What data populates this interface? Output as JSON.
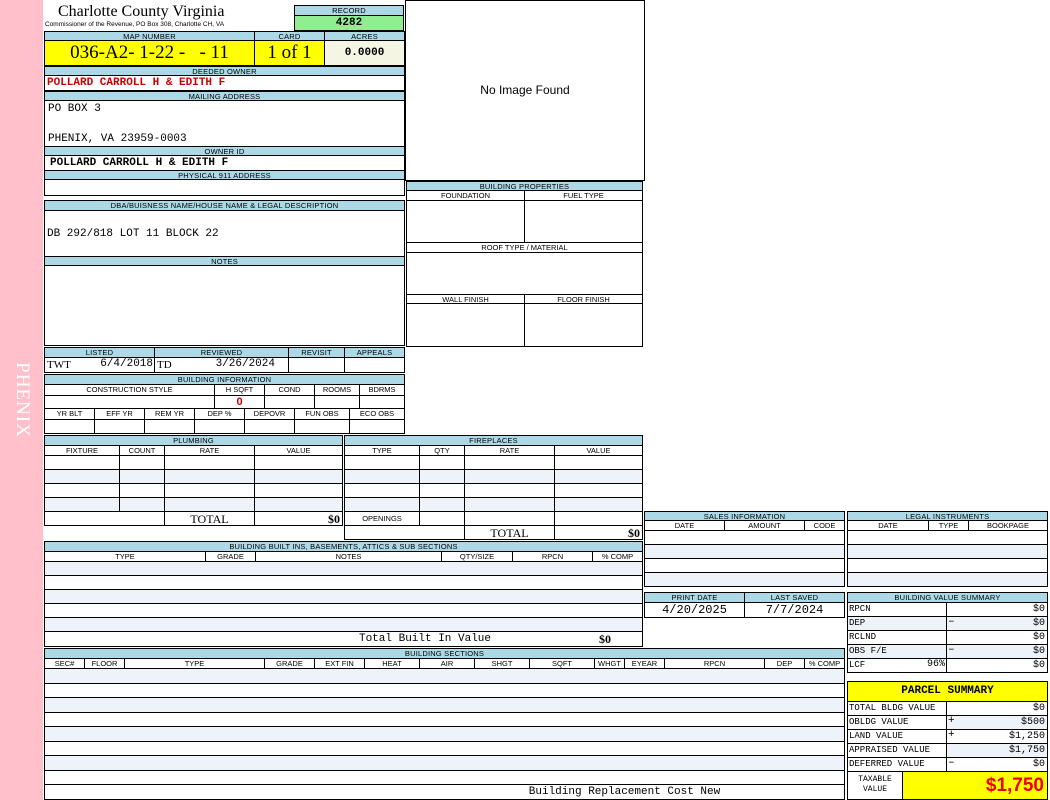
{
  "side_label": "PHENIX",
  "header": {
    "title": "Charlotte County Virginia",
    "subtitle": "Commissioner of the Revenue, PO Box 308, Charlotte CH, VA",
    "record_label": "RECORD",
    "record": "4282"
  },
  "parcel": {
    "map_number_label": "MAP NUMBER",
    "map_number": "036-A2- 1-22 -   - 11",
    "card_label": "CARD",
    "card": "1 of 1",
    "acres_label": "ACRES",
    "acres": "0.0000"
  },
  "owner": {
    "deeded_label": "DEEDED OWNER",
    "deeded": "POLLARD CARROLL H & EDITH F",
    "mailing_label": "MAILING ADDRESS",
    "mailing_line1": "PO BOX 3",
    "mailing_line2": "PHENIX, VA 23959-0003",
    "owner_id_label": "OWNER ID",
    "owner_id": "POLLARD CARROLL H & EDITH F",
    "physical_label": "PHYSICAL 911 ADDRESS"
  },
  "image": {
    "no_image": "No Image Found"
  },
  "dba": {
    "label": "DBA/BUISNESS NAME/HOUSE NAME & LEGAL DESCRIPTION",
    "value": "DB 292/818 LOT 11 BLOCK 22"
  },
  "notes": {
    "label": "NOTES"
  },
  "building_properties": {
    "label": "BUILDING PROPERTIES",
    "foundation": "FOUNDATION",
    "fuel_type": "FUEL TYPE",
    "roof": "ROOF TYPE / MATERIAL",
    "wall": "WALL FINISH",
    "floor": "FLOOR FINISH"
  },
  "review": {
    "listed_label": "LISTED",
    "listed_by": "TWT",
    "listed_date": "6/4/2018",
    "reviewed_label": "REVIEWED",
    "reviewed_by": "TD",
    "reviewed_date": "3/26/2024",
    "revisit_label": "REVISIT",
    "appeals_label": "APPEALS"
  },
  "building_info": {
    "label": "BUILDING INFORMATION",
    "cols1": [
      "CONSTRUCTION STYLE",
      "H SQFT",
      "COND",
      "ROOMS",
      "BDRMS"
    ],
    "hsqft": "0",
    "cols2": [
      "YR BLT",
      "EFF YR",
      "REM YR",
      "DEP %",
      "DEPOVR",
      "FUN OBS",
      "ECO OBS"
    ]
  },
  "plumbing": {
    "label": "PLUMBING",
    "columns": [
      "FIXTURE",
      "COUNT",
      "RATE",
      "VALUE"
    ],
    "total_label": "TOTAL",
    "total": "$0"
  },
  "fireplaces": {
    "label": "FIREPLACES",
    "columns": [
      "TYPE",
      "QTY",
      "RATE",
      "VALUE"
    ],
    "openings_label": "OPENINGS",
    "total_label": "TOTAL",
    "total": "$0"
  },
  "built_ins": {
    "label": "BUILDING BUILT INS, BASEMENTS, ATTICS & SUB SECTIONS",
    "columns": [
      "TYPE",
      "GRADE",
      "NOTES",
      "QTY/SIZE",
      "RPCN",
      "% COMP"
    ],
    "total_label": "Total Built In Value",
    "total": "$0"
  },
  "sections": {
    "label": "BUILDING SECTIONS",
    "columns": [
      "SEC#",
      "FLOOR",
      "TYPE",
      "GRADE",
      "EXT FIN",
      "HEAT",
      "AIR",
      "SHGT",
      "SQFT",
      "WHGT",
      "EYEAR",
      "RPCN",
      "DEP",
      "% COMP"
    ],
    "footer_label": "Building Replacement Cost New"
  },
  "sales": {
    "label": "SALES INFORMATION",
    "columns": [
      "DATE",
      "AMOUNT",
      "CODE"
    ]
  },
  "legal": {
    "label": "LEGAL INSTRUMENTS",
    "columns": [
      "DATE",
      "TYPE",
      "BOOKPAGE"
    ]
  },
  "dates": {
    "print_label": "PRINT DATE",
    "print_date": "4/20/2025",
    "saved_label": "LAST SAVED",
    "last_saved": "7/7/2024"
  },
  "bvs": {
    "label": "BUILDING VALUE SUMMARY",
    "lcf_pct": "96%",
    "rows": [
      {
        "label": "RPCN",
        "sign": "",
        "value": "$0"
      },
      {
        "label": "DEP",
        "sign": "–",
        "value": "$0"
      },
      {
        "label": "RCLND",
        "sign": "",
        "value": "$0"
      },
      {
        "label": "OBS F/E",
        "sign": "–",
        "value": "$0"
      },
      {
        "label": "LCF",
        "sign": "",
        "value": "$0"
      }
    ]
  },
  "parcel_summary": {
    "label": "PARCEL SUMMARY",
    "rows": [
      {
        "label": "TOTAL BLDG VALUE",
        "sign": "",
        "value": "$0"
      },
      {
        "label": "OBLDG VALUE",
        "sign": "+",
        "value": "$500"
      },
      {
        "label": "LAND VALUE",
        "sign": "+",
        "value": "$1,250"
      },
      {
        "label": "APPRAISED VALUE",
        "sign": "",
        "value": "$1,750"
      },
      {
        "label": "DEFERRED VALUE",
        "sign": "–",
        "value": "$0"
      }
    ],
    "taxable_label": "TAXABLE VALUE",
    "taxable": "$1,750"
  },
  "colors": {
    "header_blue": "#add8e6",
    "highlight_yellow": "#ffff00",
    "record_green": "#90ee90",
    "owner_red": "#cc0000",
    "side_pink": "#ffc0cb"
  }
}
